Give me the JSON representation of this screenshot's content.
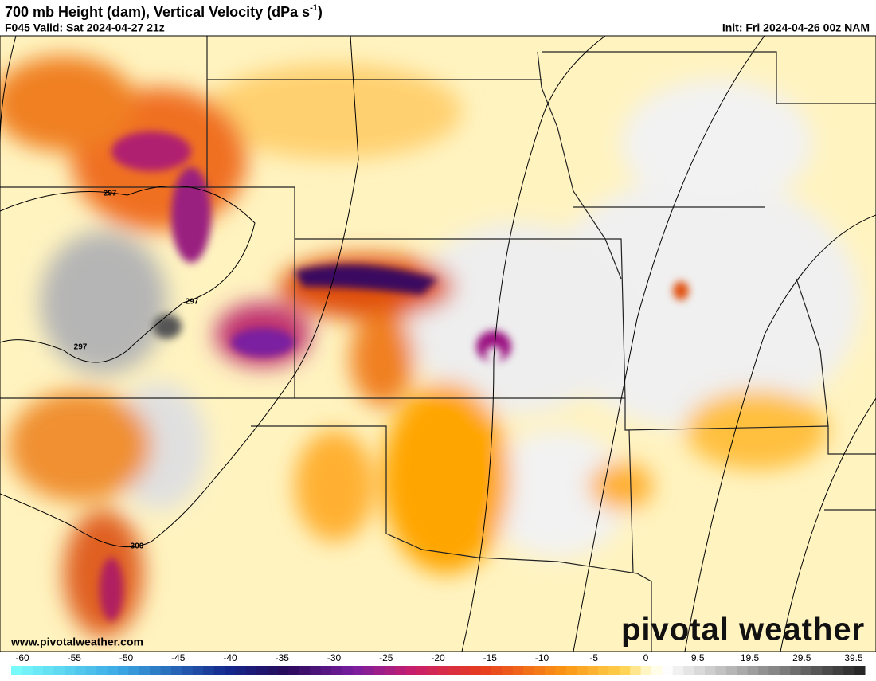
{
  "header": {
    "title": [
      "700 mb Height (dam), Vertical Velocity (dPa s",
      "-1",
      ")"
    ],
    "valid": "F045 Valid: Sat 2024-04-27 21z",
    "init": "Init: Fri 2024-04-26 00z NAM"
  },
  "map": {
    "contour_labels": [
      "297",
      "297",
      "297",
      "300"
    ]
  },
  "footer": {
    "url": "www.pivotalweather.com",
    "logo": "pivotal weather"
  },
  "colorbar": {
    "ticks": [
      -60,
      -55,
      -50,
      -45,
      -40,
      -35,
      -30,
      -25,
      -20,
      -15,
      -10,
      -5,
      0,
      9.5,
      19.5,
      29.5,
      39.5
    ]
  }
}
